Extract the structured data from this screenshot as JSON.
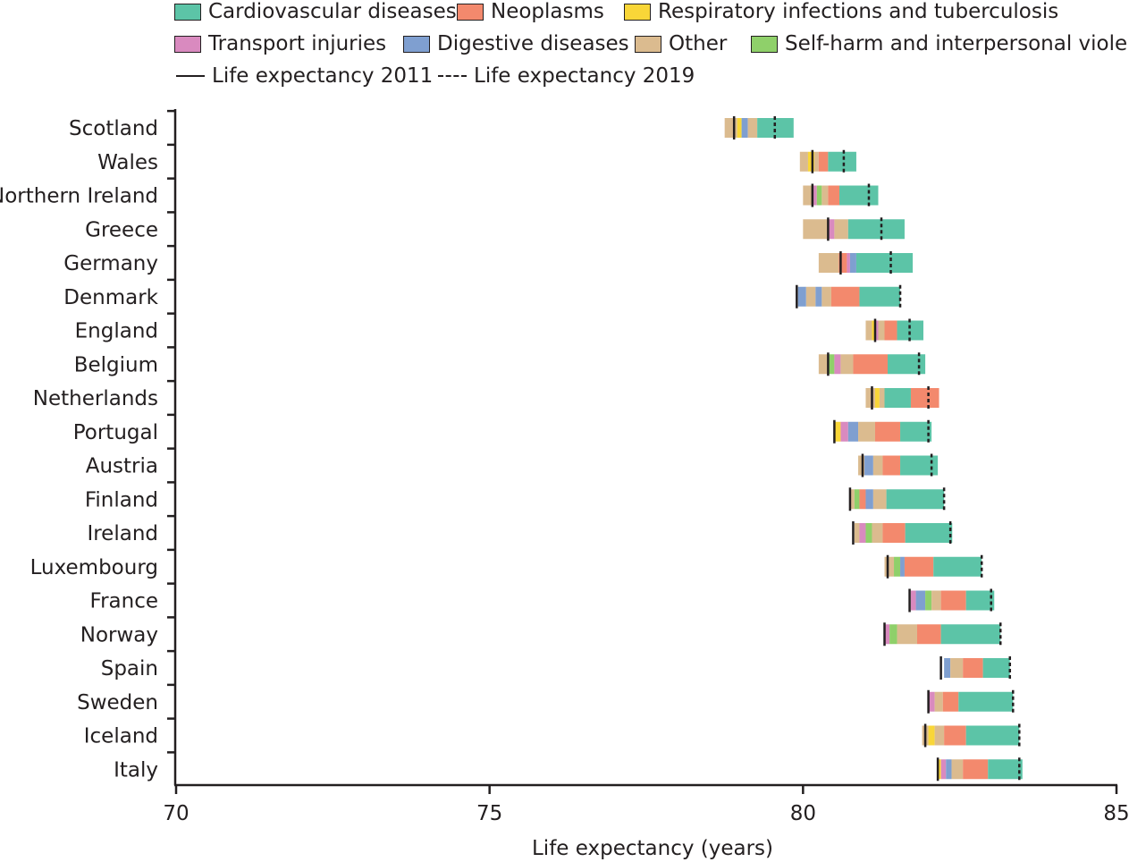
{
  "chart_data": {
    "type": "bar",
    "orientation": "horizontal-stacked-decomposition",
    "title": "",
    "xlabel": "Life expectancy (years)",
    "ylabel": "",
    "xlim": [
      70,
      85
    ],
    "xticks": [
      "70",
      "75",
      "80",
      "85"
    ],
    "legend": {
      "placement": "top",
      "items": [
        {
          "key": "cardio",
          "label": "Cardiovascular diseases",
          "color": "#5cc4a7",
          "kind": "swatch"
        },
        {
          "key": "neo",
          "label": "Neoplasms",
          "color": "#f3896d",
          "kind": "swatch"
        },
        {
          "key": "resp",
          "label": "Respiratory infections and tuberculosis",
          "color": "#f9d638",
          "kind": "swatch"
        },
        {
          "key": "trans",
          "label": "Transport injuries",
          "color": "#d98abf",
          "kind": "swatch"
        },
        {
          "key": "dig",
          "label": "Digestive diseases",
          "color": "#7f9fd0",
          "kind": "swatch"
        },
        {
          "key": "other",
          "label": "Other",
          "color": "#dbbb8f",
          "kind": "swatch"
        },
        {
          "key": "self",
          "label": "Self-harm and interpersonal violence",
          "color": "#8fd06a",
          "kind": "swatch"
        },
        {
          "key": "le2011",
          "label": "Life expectancy 2011",
          "kind": "solid-line"
        },
        {
          "key": "le2019",
          "label": "Life expectancy 2019",
          "kind": "dashed-line"
        }
      ]
    },
    "countries": [
      {
        "name": "Scotland",
        "le2011": 78.9,
        "le2019": 79.55,
        "segments": [
          [
            "other",
            78.75,
            78.95
          ],
          [
            "resp",
            78.95,
            79.02
          ],
          [
            "dig",
            79.02,
            79.12
          ],
          [
            "other",
            79.12,
            79.27
          ],
          [
            "cardio",
            79.27,
            79.85
          ]
        ]
      },
      {
        "name": "Wales",
        "le2011": 80.15,
        "le2019": 80.65,
        "segments": [
          [
            "other",
            79.95,
            80.08
          ],
          [
            "resp",
            80.08,
            80.18
          ],
          [
            "other",
            80.18,
            80.25
          ],
          [
            "neo",
            80.25,
            80.4
          ],
          [
            "cardio",
            80.4,
            80.85
          ]
        ]
      },
      {
        "name": "Northern Ireland",
        "le2011": 80.15,
        "le2019": 81.05,
        "segments": [
          [
            "other",
            80.0,
            80.15
          ],
          [
            "trans",
            80.15,
            80.22
          ],
          [
            "self",
            80.22,
            80.3
          ],
          [
            "other",
            80.3,
            80.4
          ],
          [
            "neo",
            80.4,
            80.58
          ],
          [
            "cardio",
            80.58,
            81.2
          ]
        ]
      },
      {
        "name": "Greece",
        "le2011": 80.4,
        "le2019": 81.25,
        "segments": [
          [
            "other",
            80.0,
            80.4
          ],
          [
            "trans",
            80.4,
            80.5
          ],
          [
            "other",
            80.5,
            80.72
          ],
          [
            "cardio",
            80.72,
            81.62
          ]
        ]
      },
      {
        "name": "Germany",
        "le2011": 80.6,
        "le2019": 81.4,
        "segments": [
          [
            "other",
            80.25,
            80.57
          ],
          [
            "neo",
            80.57,
            80.7
          ],
          [
            "trans",
            80.7,
            80.75
          ],
          [
            "dig",
            80.75,
            80.85
          ],
          [
            "cardio",
            80.85,
            81.75
          ]
        ]
      },
      {
        "name": "Denmark",
        "le2011": 79.9,
        "le2019": 81.55,
        "segments": [
          [
            "dig",
            79.92,
            80.05
          ],
          [
            "other",
            80.05,
            80.2
          ],
          [
            "dig",
            80.2,
            80.3
          ],
          [
            "other",
            80.3,
            80.45
          ],
          [
            "neo",
            80.45,
            80.9
          ],
          [
            "cardio",
            80.9,
            81.55
          ]
        ]
      },
      {
        "name": "England",
        "le2011": 81.15,
        "le2019": 81.7,
        "segments": [
          [
            "other",
            81.0,
            81.1
          ],
          [
            "resp",
            81.1,
            81.15
          ],
          [
            "trans",
            81.15,
            81.2
          ],
          [
            "other",
            81.2,
            81.3
          ],
          [
            "neo",
            81.3,
            81.5
          ],
          [
            "cardio",
            81.5,
            81.92
          ]
        ]
      },
      {
        "name": "Belgium",
        "le2011": 80.4,
        "le2019": 81.85,
        "segments": [
          [
            "other",
            80.25,
            80.4
          ],
          [
            "self",
            80.4,
            80.5
          ],
          [
            "trans",
            80.5,
            80.6
          ],
          [
            "other",
            80.6,
            80.8
          ],
          [
            "neo",
            80.8,
            81.35
          ],
          [
            "cardio",
            81.35,
            81.95
          ]
        ]
      },
      {
        "name": "Netherlands",
        "le2011": 81.1,
        "le2019": 82.0,
        "segments": [
          [
            "other",
            81.0,
            81.15
          ],
          [
            "resp",
            81.15,
            81.22
          ],
          [
            "other",
            81.22,
            81.3
          ],
          [
            "cardio",
            81.3,
            81.72
          ],
          [
            "neo",
            81.72,
            82.17
          ]
        ]
      },
      {
        "name": "Portugal",
        "le2011": 80.5,
        "le2019": 82.0,
        "segments": [
          [
            "resp",
            80.5,
            80.6
          ],
          [
            "trans",
            80.6,
            80.72
          ],
          [
            "dig",
            80.72,
            80.88
          ],
          [
            "other",
            80.88,
            81.15
          ],
          [
            "neo",
            81.15,
            81.55
          ],
          [
            "cardio",
            81.55,
            82.05
          ]
        ]
      },
      {
        "name": "Austria",
        "le2011": 80.95,
        "le2019": 82.05,
        "segments": [
          [
            "other",
            80.88,
            80.98
          ],
          [
            "dig",
            80.98,
            81.12
          ],
          [
            "other",
            81.12,
            81.27
          ],
          [
            "neo",
            81.27,
            81.55
          ],
          [
            "cardio",
            81.55,
            82.15
          ]
        ]
      },
      {
        "name": "Finland",
        "le2011": 80.75,
        "le2019": 82.25,
        "segments": [
          [
            "other",
            80.75,
            80.82
          ],
          [
            "self",
            80.82,
            80.9
          ],
          [
            "neo",
            80.9,
            81.0
          ],
          [
            "dig",
            81.0,
            81.12
          ],
          [
            "other",
            81.12,
            81.33
          ],
          [
            "cardio",
            81.33,
            82.25
          ]
        ]
      },
      {
        "name": "Ireland",
        "le2011": 80.8,
        "le2019": 82.35,
        "segments": [
          [
            "other",
            80.82,
            80.9
          ],
          [
            "trans",
            80.9,
            81.0
          ],
          [
            "self",
            81.0,
            81.1
          ],
          [
            "other",
            81.1,
            81.27
          ],
          [
            "neo",
            81.27,
            81.63
          ],
          [
            "cardio",
            81.63,
            82.38
          ]
        ]
      },
      {
        "name": "Luxembourg",
        "le2011": 81.35,
        "le2019": 82.85,
        "segments": [
          [
            "other",
            81.3,
            81.45
          ],
          [
            "self",
            81.45,
            81.55
          ],
          [
            "dig",
            81.55,
            81.62
          ],
          [
            "neo",
            81.62,
            82.08
          ],
          [
            "cardio",
            82.08,
            82.85
          ]
        ]
      },
      {
        "name": "France",
        "le2011": 81.7,
        "le2019": 83.0,
        "segments": [
          [
            "trans",
            81.72,
            81.8
          ],
          [
            "dig",
            81.8,
            81.95
          ],
          [
            "self",
            81.95,
            82.05
          ],
          [
            "other",
            82.05,
            82.2
          ],
          [
            "neo",
            82.2,
            82.6
          ],
          [
            "cardio",
            82.6,
            83.05
          ]
        ]
      },
      {
        "name": "Norway",
        "le2011": 81.3,
        "le2019": 83.15,
        "segments": [
          [
            "trans",
            81.3,
            81.38
          ],
          [
            "self",
            81.38,
            81.5
          ],
          [
            "other",
            81.5,
            81.82
          ],
          [
            "neo",
            81.82,
            82.2
          ],
          [
            "cardio",
            82.2,
            83.15
          ]
        ]
      },
      {
        "name": "Spain",
        "le2011": 82.2,
        "le2019": 83.3,
        "segments": [
          [
            "dig",
            82.25,
            82.35
          ],
          [
            "other",
            82.35,
            82.55
          ],
          [
            "neo",
            82.55,
            82.87
          ],
          [
            "cardio",
            82.87,
            83.3
          ]
        ]
      },
      {
        "name": "Sweden",
        "le2011": 82.0,
        "le2019": 83.35,
        "segments": [
          [
            "trans",
            82.0,
            82.1
          ],
          [
            "other",
            82.1,
            82.23
          ],
          [
            "neo",
            82.23,
            82.48
          ],
          [
            "cardio",
            82.48,
            83.35
          ]
        ]
      },
      {
        "name": "Iceland",
        "le2011": 81.95,
        "le2019": 83.45,
        "segments": [
          [
            "other",
            81.9,
            82.0
          ],
          [
            "resp",
            82.0,
            82.1
          ],
          [
            "other",
            82.1,
            82.25
          ],
          [
            "neo",
            82.25,
            82.6
          ],
          [
            "cardio",
            82.6,
            83.45
          ]
        ]
      },
      {
        "name": "Italy",
        "le2011": 82.15,
        "le2019": 83.45,
        "segments": [
          [
            "resp",
            82.15,
            82.2
          ],
          [
            "trans",
            82.2,
            82.28
          ],
          [
            "dig",
            82.28,
            82.37
          ],
          [
            "other",
            82.37,
            82.55
          ],
          [
            "neo",
            82.55,
            82.95
          ],
          [
            "cardio",
            82.95,
            83.5
          ]
        ]
      }
    ]
  }
}
